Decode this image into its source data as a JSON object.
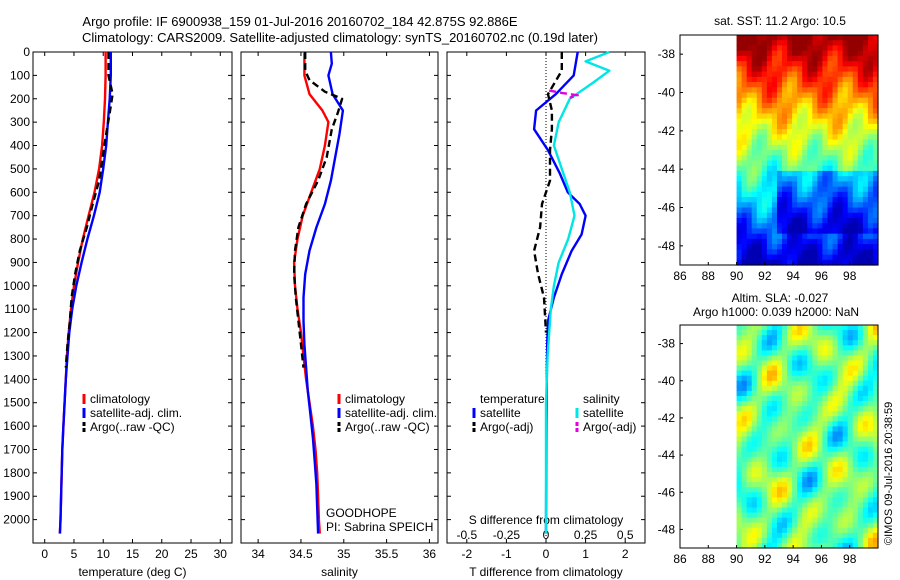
{
  "title_line1": "Argo profile: IF 6900938_159 01-Jul-2016 20160702_184 42.875S 92.886E",
  "title_line2": "Climatology: CARS2009. Satellite-adjusted climatology: synTS_20160702.nc (0.19d later)",
  "stamp": "©IMOS 09-Jul-2016 20:38:59",
  "colors": {
    "climatology": "#ff0000",
    "satellite": "#0000ff",
    "argo": "#000000",
    "salinity_satellite": "#00e5e5",
    "salinity_argo": "#e000e0"
  },
  "chart_data": [
    {
      "type": "line",
      "name": "temperature_profile",
      "xlabel": "temperature (deg C)",
      "xlim": [
        -2,
        32
      ],
      "ylim": [
        2100,
        0
      ],
      "xticks": [
        0,
        5,
        10,
        15,
        20,
        25,
        30
      ],
      "xtick_labels": [
        "0",
        "5",
        "10",
        "15",
        "20",
        "25",
        "30"
      ],
      "yticks": [
        0,
        100,
        200,
        300,
        400,
        500,
        600,
        700,
        800,
        900,
        1000,
        1100,
        1200,
        1300,
        1400,
        1500,
        1600,
        1700,
        1800,
        1900,
        2000
      ],
      "ytick_labels": [
        "0",
        "100",
        "200",
        "300",
        "400",
        "500",
        "600",
        "700",
        "800",
        "900",
        "1000",
        "1100",
        "1200",
        "1300",
        "1400",
        "1500",
        "1600",
        "1700",
        "1800",
        "1900",
        "2000"
      ],
      "legend": [
        "climatology",
        "satellite-adj. clim.",
        "Argo(..raw -QC)"
      ],
      "series": [
        {
          "name": "climatology",
          "style": "solid",
          "color_key": "climatology",
          "points": [
            [
              10.4,
              0
            ],
            [
              10.4,
              100
            ],
            [
              10.3,
              200
            ],
            [
              10.1,
              300
            ],
            [
              9.8,
              400
            ],
            [
              9.3,
              500
            ],
            [
              8.5,
              600
            ],
            [
              7.5,
              700
            ],
            [
              6.5,
              800
            ],
            [
              5.7,
              900
            ],
            [
              5.0,
              1000
            ],
            [
              4.5,
              1100
            ],
            [
              4.1,
              1200
            ],
            [
              3.8,
              1300
            ],
            [
              3.6,
              1400
            ],
            [
              3.4,
              1500
            ],
            [
              3.2,
              1600
            ],
            [
              3.0,
              1700
            ],
            [
              2.9,
              1800
            ],
            [
              2.8,
              1900
            ],
            [
              2.7,
              2000
            ],
            [
              2.6,
              2060
            ]
          ]
        },
        {
          "name": "satellite-adj. clim.",
          "style": "solid",
          "color_key": "satellite",
          "points": [
            [
              11.3,
              0
            ],
            [
              11.3,
              100
            ],
            [
              11.1,
              200
            ],
            [
              10.8,
              300
            ],
            [
              10.5,
              400
            ],
            [
              10.0,
              500
            ],
            [
              9.4,
              600
            ],
            [
              8.4,
              700
            ],
            [
              7.3,
              800
            ],
            [
              6.3,
              900
            ],
            [
              5.4,
              1000
            ],
            [
              4.7,
              1100
            ],
            [
              4.2,
              1200
            ],
            [
              3.9,
              1300
            ],
            [
              3.6,
              1400
            ],
            [
              3.4,
              1500
            ],
            [
              3.2,
              1600
            ],
            [
              3.0,
              1700
            ],
            [
              2.9,
              1800
            ],
            [
              2.8,
              1900
            ],
            [
              2.7,
              2000
            ],
            [
              2.6,
              2060
            ]
          ]
        },
        {
          "name": "Argo(..raw -QC)",
          "style": "dashed",
          "color_key": "argo",
          "points": [
            [
              10.9,
              0
            ],
            [
              10.9,
              100
            ],
            [
              11.6,
              180
            ],
            [
              11.1,
              260
            ],
            [
              10.5,
              350
            ],
            [
              9.9,
              450
            ],
            [
              9.3,
              550
            ],
            [
              8.2,
              650
            ],
            [
              7.2,
              750
            ],
            [
              6.0,
              850
            ],
            [
              5.2,
              950
            ],
            [
              4.6,
              1050
            ],
            [
              4.3,
              1150
            ],
            [
              3.9,
              1250
            ],
            [
              3.6,
              1350
            ]
          ]
        }
      ]
    },
    {
      "type": "line",
      "name": "salinity_profile",
      "xlabel": "salinity",
      "xlim": [
        33.8,
        36.1
      ],
      "ylim": [
        2100,
        0
      ],
      "xticks": [
        34,
        34.5,
        35,
        35.5,
        36
      ],
      "xtick_labels": [
        "34",
        "34.5",
        "35",
        "35.5",
        "36"
      ],
      "legend": [
        "climatology",
        "satellite-adj. clim.",
        "Argo(..raw -QC)"
      ],
      "annotation": [
        "GOODHOPE",
        "PI: Sabrina SPEICH"
      ],
      "series": [
        {
          "name": "climatology",
          "style": "solid",
          "color_key": "climatology",
          "points": [
            [
              34.54,
              0
            ],
            [
              34.54,
              100
            ],
            [
              34.6,
              180
            ],
            [
              34.75,
              250
            ],
            [
              34.82,
              300
            ],
            [
              34.78,
              400
            ],
            [
              34.72,
              500
            ],
            [
              34.62,
              600
            ],
            [
              34.52,
              700
            ],
            [
              34.46,
              800
            ],
            [
              34.42,
              900
            ],
            [
              34.43,
              1000
            ],
            [
              34.46,
              1100
            ],
            [
              34.5,
              1200
            ],
            [
              34.53,
              1300
            ],
            [
              34.56,
              1400
            ],
            [
              34.6,
              1500
            ],
            [
              34.64,
              1600
            ],
            [
              34.67,
              1700
            ],
            [
              34.69,
              1800
            ],
            [
              34.7,
              1900
            ],
            [
              34.71,
              2000
            ],
            [
              34.72,
              2060
            ]
          ]
        },
        {
          "name": "satellite-adj. clim.",
          "style": "solid",
          "color_key": "satellite",
          "points": [
            [
              34.85,
              0
            ],
            [
              34.86,
              50
            ],
            [
              34.82,
              100
            ],
            [
              34.87,
              180
            ],
            [
              34.99,
              250
            ],
            [
              34.95,
              350
            ],
            [
              34.9,
              450
            ],
            [
              34.85,
              550
            ],
            [
              34.78,
              650
            ],
            [
              34.68,
              750
            ],
            [
              34.6,
              850
            ],
            [
              34.55,
              950
            ],
            [
              34.53,
              1050
            ],
            [
              34.53,
              1150
            ],
            [
              34.54,
              1250
            ],
            [
              34.56,
              1350
            ],
            [
              34.58,
              1450
            ],
            [
              34.61,
              1550
            ],
            [
              34.64,
              1650
            ],
            [
              34.66,
              1750
            ],
            [
              34.68,
              1850
            ],
            [
              34.69,
              1950
            ],
            [
              34.7,
              2060
            ]
          ]
        },
        {
          "name": "Argo(..raw -QC)",
          "style": "dashed",
          "color_key": "argo",
          "points": [
            [
              34.55,
              0
            ],
            [
              34.55,
              80
            ],
            [
              34.6,
              120
            ],
            [
              34.78,
              170
            ],
            [
              34.98,
              200
            ],
            [
              34.93,
              260
            ],
            [
              34.86,
              330
            ],
            [
              34.8,
              450
            ],
            [
              34.7,
              550
            ],
            [
              34.56,
              650
            ],
            [
              34.47,
              750
            ],
            [
              34.43,
              850
            ],
            [
              34.42,
              950
            ],
            [
              34.44,
              1050
            ],
            [
              34.47,
              1150
            ],
            [
              34.5,
              1250
            ],
            [
              34.53,
              1350
            ]
          ]
        }
      ]
    },
    {
      "type": "line",
      "name": "difference_profile",
      "xlabel": "T difference from climatology",
      "top_axis_label": "S difference from climatology",
      "xlim": [
        -2.5,
        2.5
      ],
      "ylim": [
        2100,
        0
      ],
      "xticks": [
        -2,
        -1,
        0,
        1,
        2
      ],
      "xtick_labels": [
        "-2",
        "-1",
        "0",
        "1",
        "2"
      ],
      "s_ticks": [
        -0.5,
        -0.25,
        0,
        0.25,
        0.5
      ],
      "s_tick_labels": [
        "-0.5",
        "-0.25",
        "0",
        "0.25",
        "0.5"
      ],
      "legend_headers": [
        "temperature",
        "salinity"
      ],
      "legend": [
        "satellite",
        "Argo(-adj)",
        "satellite",
        "Argo(-adj)"
      ],
      "series": [
        {
          "name": "satellite",
          "group": "temperature",
          "style": "solid",
          "color_key": "satellite",
          "points": [
            [
              0.8,
              0
            ],
            [
              0.7,
              100
            ],
            [
              0.25,
              180
            ],
            [
              -0.25,
              250
            ],
            [
              -0.3,
              330
            ],
            [
              0.05,
              420
            ],
            [
              0.35,
              520
            ],
            [
              0.55,
              600
            ],
            [
              0.85,
              650
            ],
            [
              1.0,
              700
            ],
            [
              0.9,
              780
            ],
            [
              0.65,
              850
            ],
            [
              0.4,
              950
            ],
            [
              0.2,
              1050
            ],
            [
              0.05,
              1150
            ],
            [
              0.03,
              1250
            ],
            [
              0.02,
              1400
            ],
            [
              0.01,
              1600
            ],
            [
              0,
              2060
            ]
          ]
        },
        {
          "name": "Argo(-adj)",
          "group": "temperature",
          "style": "dashed",
          "color_key": "argo",
          "points": [
            [
              0.4,
              0
            ],
            [
              0.4,
              80
            ],
            [
              0.05,
              180
            ],
            [
              0.15,
              250
            ],
            [
              0.15,
              330
            ],
            [
              0.1,
              420
            ],
            [
              0.1,
              550
            ],
            [
              -0.1,
              650
            ],
            [
              -0.15,
              750
            ],
            [
              -0.3,
              850
            ],
            [
              -0.2,
              950
            ],
            [
              -0.05,
              1050
            ],
            [
              0,
              1200
            ]
          ]
        },
        {
          "name": "satellite",
          "group": "salinity",
          "style": "solid",
          "color_key": "salinity_satellite",
          "points": [
            [
              0.4,
              0
            ],
            [
              0.25,
              40
            ],
            [
              0.4,
              80
            ],
            [
              0.3,
              130
            ],
            [
              0.15,
              200
            ],
            [
              0.08,
              300
            ],
            [
              0.05,
              400
            ],
            [
              0.1,
              500
            ],
            [
              0.15,
              600
            ],
            [
              0.18,
              700
            ],
            [
              0.14,
              800
            ],
            [
              0.08,
              900
            ],
            [
              0.05,
              1000
            ],
            [
              0.03,
              1100
            ],
            [
              0.02,
              1200
            ],
            [
              0.01,
              1300
            ],
            [
              0,
              1500
            ],
            [
              0,
              2060
            ]
          ]
        },
        {
          "name": "Argo(-adj)",
          "group": "salinity",
          "style": "dashed",
          "color_key": "salinity_argo",
          "points": [
            [
              0.02,
              165
            ],
            [
              0.1,
              175
            ],
            [
              0.2,
              185
            ],
            [
              0.15,
              195
            ]
          ]
        }
      ]
    },
    {
      "type": "heatmap",
      "name": "sst_map",
      "title": "sat. SST: 11.2 Argo: 10.5",
      "xlim": [
        86,
        100
      ],
      "ylim": [
        -49,
        -37
      ],
      "xticks": [
        86,
        88,
        90,
        92,
        94,
        96,
        98
      ],
      "xtick_labels": [
        "86",
        "88",
        "90",
        "92",
        "94",
        "96",
        "98"
      ],
      "yticks": [
        -38,
        -40,
        -42,
        -44,
        -46,
        -48
      ],
      "ytick_labels": [
        "-38",
        "-40",
        "-42",
        "-44",
        "-46",
        "-48"
      ],
      "data_xlim": [
        90,
        100
      ],
      "value_range": [
        7,
        16
      ]
    },
    {
      "type": "heatmap",
      "name": "sla_map",
      "title_line1": "Altim. SLA: -0.027",
      "title_line2": "Argo h1000: 0.039 h2000: NaN",
      "xlim": [
        86,
        100
      ],
      "ylim": [
        -49,
        -37
      ],
      "xticks": [
        86,
        88,
        90,
        92,
        94,
        96,
        98
      ],
      "xtick_labels": [
        "86",
        "88",
        "90",
        "92",
        "94",
        "96",
        "98"
      ],
      "yticks": [
        -38,
        -40,
        -42,
        -44,
        -46,
        -48
      ],
      "ytick_labels": [
        "-38",
        "-40",
        "-42",
        "-44",
        "-46",
        "-48"
      ],
      "data_xlim": [
        90,
        100
      ],
      "value_range": [
        -0.3,
        0.3
      ]
    }
  ]
}
